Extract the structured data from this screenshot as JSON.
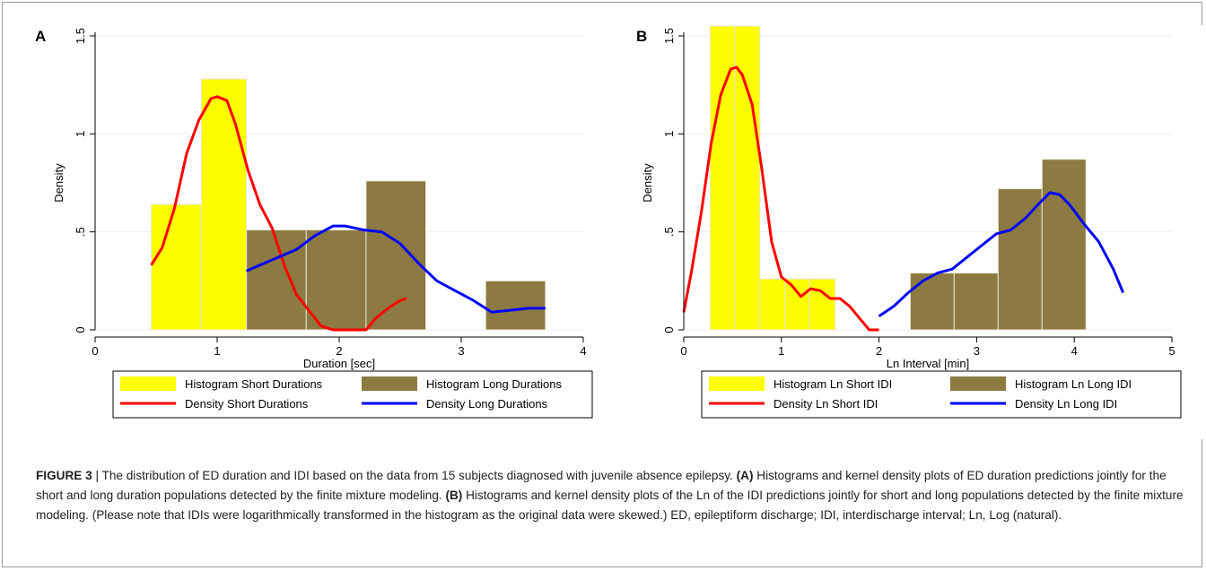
{
  "panels": [
    {
      "letter": "A"
    },
    {
      "letter": "B"
    }
  ],
  "caption": {
    "label": "FIGURE 3",
    "separator": " | ",
    "segments": [
      {
        "text": "The distribution of ED duration and IDI based on the data from 15 subjects diagnosed with juvenile absence epilepsy. ",
        "bold": false
      },
      {
        "text": "(A)",
        "bold": true
      },
      {
        "text": " Histograms and kernel density plots of ED duration predictions jointly for the short and long duration populations detected by the finite mixture modeling. ",
        "bold": false
      },
      {
        "text": "(B)",
        "bold": true
      },
      {
        "text": " Histograms and kernel density plots of the Ln of the IDI predictions jointly for short and long populations detected by the finite mixture modeling. (Please note that IDIs were logarithmically transformed in the histogram as the original data were skewed.) ED, epileptiform discharge; IDI, interdischarge interval; Ln, Log (natural).",
        "bold": false
      }
    ]
  },
  "colors": {
    "short_hist": "#ffff00",
    "long_hist": "#8c7a42",
    "short_density": "#ff0000",
    "long_density": "#0000ff",
    "grid": "#e8eef2"
  },
  "chart_data": [
    {
      "type": "bar",
      "panel": "A",
      "xlabel": "Duration [sec]",
      "ylabel": "Density",
      "xlim": [
        0,
        4
      ],
      "ylim": [
        0,
        1.5
      ],
      "xticks": [
        0,
        1,
        2,
        3,
        4
      ],
      "xtick_labels": [
        "0",
        "1",
        "2",
        "3",
        "4"
      ],
      "yticks": [
        0,
        0.5,
        1,
        1.5
      ],
      "ytick_labels": [
        "0",
        ".5",
        "1",
        "1.5"
      ],
      "grid": true,
      "legend_position": "bottom",
      "histograms": [
        {
          "name": "Histogram Short Durations",
          "color": "#ffff00",
          "bins": [
            {
              "x0": 0.46,
              "x1": 0.87,
              "value": 0.64
            },
            {
              "x0": 0.87,
              "x1": 1.24,
              "value": 1.28
            }
          ]
        },
        {
          "name": "Histogram Long Durations",
          "color": "#8c7a42",
          "bins": [
            {
              "x0": 1.24,
              "x1": 1.73,
              "value": 0.51
            },
            {
              "x0": 1.73,
              "x1": 2.22,
              "value": 0.51
            },
            {
              "x0": 2.22,
              "x1": 2.71,
              "value": 0.76
            },
            {
              "x0": 3.2,
              "x1": 3.69,
              "value": 0.25
            }
          ]
        }
      ],
      "density_series": [
        {
          "name": "Density Short Durations",
          "color": "#ff0000",
          "x": [
            0.46,
            0.55,
            0.65,
            0.75,
            0.85,
            0.95,
            1.0,
            1.08,
            1.15,
            1.25,
            1.35,
            1.45,
            1.55,
            1.65,
            1.75,
            1.85,
            1.95,
            2.05,
            2.15,
            2.22,
            2.3,
            2.4,
            2.5,
            2.55
          ],
          "y": [
            0.33,
            0.42,
            0.62,
            0.9,
            1.07,
            1.18,
            1.19,
            1.17,
            1.05,
            0.82,
            0.64,
            0.52,
            0.33,
            0.18,
            0.1,
            0.02,
            0.0,
            0.0,
            0.0,
            0.0,
            0.06,
            0.11,
            0.15,
            0.16
          ]
        },
        {
          "name": "Density Long Durations",
          "color": "#0000ff",
          "x": [
            1.24,
            1.35,
            1.5,
            1.65,
            1.8,
            1.95,
            2.05,
            2.2,
            2.35,
            2.5,
            2.65,
            2.8,
            2.95,
            3.1,
            3.25,
            3.4,
            3.55,
            3.69
          ],
          "y": [
            0.3,
            0.33,
            0.37,
            0.41,
            0.48,
            0.53,
            0.53,
            0.51,
            0.5,
            0.44,
            0.34,
            0.25,
            0.2,
            0.15,
            0.09,
            0.1,
            0.11,
            0.11
          ]
        }
      ],
      "legend": [
        "Histogram Short Durations",
        "Histogram Long Durations",
        "Density Short Durations",
        "Density Long Durations"
      ]
    },
    {
      "type": "bar",
      "panel": "B",
      "xlabel": "Ln Interval [min]",
      "ylabel": "Density",
      "xlim": [
        0,
        5
      ],
      "ylim": [
        0,
        1.5
      ],
      "xticks": [
        0,
        1,
        2,
        3,
        4,
        5
      ],
      "xtick_labels": [
        "0",
        "1",
        "2",
        "3",
        "4",
        "5"
      ],
      "yticks": [
        0,
        0.5,
        1,
        1.5
      ],
      "ytick_labels": [
        "0",
        ".5",
        "1",
        "1.5"
      ],
      "grid": true,
      "legend_position": "bottom",
      "histograms": [
        {
          "name": "Histogram Ln Short IDI",
          "color": "#ffff00",
          "bins": [
            {
              "x0": 0.27,
              "x1": 0.52,
              "value": 1.55
            },
            {
              "x0": 0.52,
              "x1": 0.78,
              "value": 1.55
            },
            {
              "x0": 0.78,
              "x1": 1.04,
              "value": 0.26
            },
            {
              "x0": 1.04,
              "x1": 1.29,
              "value": 0.26
            },
            {
              "x0": 1.29,
              "x1": 1.55,
              "value": 0.26
            }
          ]
        },
        {
          "name": "Histogram Ln Long IDI",
          "color": "#8c7a42",
          "bins": [
            {
              "x0": 2.32,
              "x1": 2.77,
              "value": 0.29
            },
            {
              "x0": 2.77,
              "x1": 3.22,
              "value": 0.29
            },
            {
              "x0": 3.22,
              "x1": 3.67,
              "value": 0.72
            },
            {
              "x0": 3.67,
              "x1": 4.12,
              "value": 0.87
            }
          ]
        }
      ],
      "density_series": [
        {
          "name": "Density Ln Short IDI",
          "color": "#ff0000",
          "x": [
            0.0,
            0.08,
            0.18,
            0.28,
            0.38,
            0.48,
            0.54,
            0.6,
            0.7,
            0.8,
            0.9,
            1.0,
            1.1,
            1.2,
            1.3,
            1.4,
            1.5,
            1.6,
            1.7,
            1.8,
            1.9,
            2.0
          ],
          "y": [
            0.09,
            0.3,
            0.6,
            0.95,
            1.2,
            1.33,
            1.34,
            1.3,
            1.15,
            0.82,
            0.45,
            0.27,
            0.23,
            0.17,
            0.21,
            0.2,
            0.16,
            0.16,
            0.12,
            0.06,
            0.0,
            0.0
          ]
        },
        {
          "name": "Density Ln Long IDI",
          "color": "#0000ff",
          "x": [
            2.0,
            2.15,
            2.3,
            2.45,
            2.6,
            2.75,
            2.9,
            3.05,
            3.2,
            3.35,
            3.5,
            3.65,
            3.75,
            3.85,
            3.95,
            4.1,
            4.25,
            4.4,
            4.5
          ],
          "y": [
            0.07,
            0.12,
            0.19,
            0.25,
            0.29,
            0.31,
            0.37,
            0.43,
            0.49,
            0.51,
            0.57,
            0.65,
            0.7,
            0.69,
            0.64,
            0.54,
            0.45,
            0.31,
            0.19
          ]
        }
      ],
      "legend": [
        "Histogram Ln Short IDI",
        "Histogram Ln Long IDI",
        "Density Ln Short IDI",
        "Density Ln Long IDI"
      ]
    }
  ]
}
